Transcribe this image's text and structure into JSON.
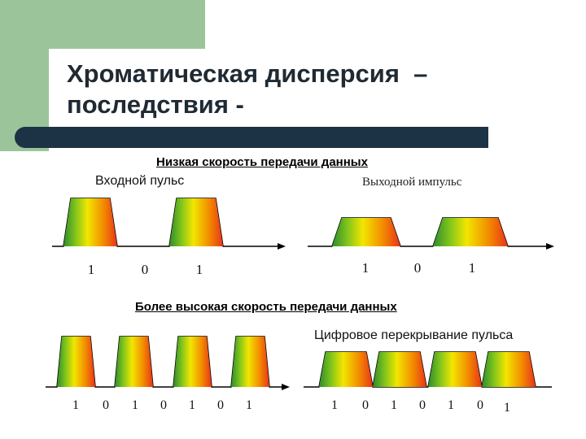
{
  "title": {
    "line1": "Хроматическая дисперсия  –",
    "line2": "последствия -"
  },
  "captions": {
    "low_speed": "Низкая скорость передачи данных",
    "input_pulse": "Входной пульс",
    "output_pulse": "Выходной импульс",
    "high_speed": "Более высокая скорость передачи данных",
    "digital_overlap": "Цифровое перекрывание пульса"
  },
  "panels": {
    "low_input": {
      "bits": [
        "1",
        "0",
        "1"
      ]
    },
    "low_output": {
      "bits": [
        "1",
        "0",
        "1"
      ]
    },
    "high_input": {
      "bits": [
        "1",
        "0",
        "1",
        "0",
        "1",
        "0",
        "1"
      ]
    },
    "high_output": {
      "bits": [
        "1",
        "0",
        "1",
        "0",
        "1",
        "0",
        "1"
      ]
    }
  },
  "colors": {
    "background_accent": "#9cc49a",
    "divider": "#1c3346",
    "pulse_gradient": [
      "#2e8b2e",
      "#7fc41c",
      "#f2e600",
      "#f28a00",
      "#e8331a"
    ]
  }
}
